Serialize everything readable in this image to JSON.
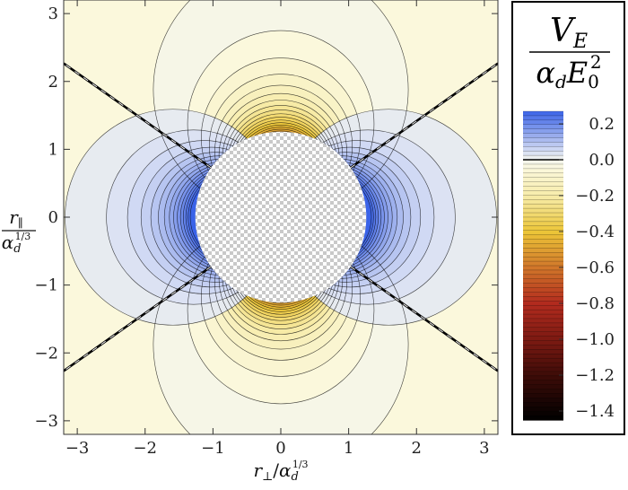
{
  "chart_data": {
    "type": "heatmap",
    "title": "",
    "xlabel": {
      "main": "r",
      "sub": "⊥",
      "denom": "α",
      "denom_sub": "d",
      "denom_sup": "1/3"
    },
    "ylabel": {
      "main": "r",
      "sub": "∥",
      "denom": "α",
      "denom_sub": "d",
      "denom_sup": "1/3"
    },
    "xlim": [
      -3.2,
      3.2
    ],
    "ylim": [
      -3.2,
      3.2
    ],
    "x_ticks": [
      -3,
      -2,
      -1,
      0,
      1,
      2,
      3
    ],
    "y_ticks": [
      -3,
      -2,
      -1,
      0,
      1,
      2,
      3
    ],
    "x_tick_labels": [
      "−3",
      "−2",
      "−1",
      "0",
      "1",
      "2",
      "3"
    ],
    "y_tick_labels": [
      "−3",
      "−2",
      "−1",
      "0",
      "1",
      "2",
      "3"
    ],
    "excluded_disk_radius": 1.26,
    "field_quantity": "V_E / (α_d E_0^2)",
    "zero_contour_angle_deg": 35.3,
    "colorbar": {
      "title_numerator": {
        "main": "V",
        "sub": "E"
      },
      "title_denominator": {
        "main": "α",
        "sub": "d",
        "main2": "E",
        "sub2": "0",
        "sup2": "2"
      },
      "range": [
        -1.45,
        0.27
      ],
      "ticks": [
        0.2,
        0.0,
        -0.2,
        -0.4,
        -0.6,
        -0.8,
        -1.0,
        -1.2,
        -1.4
      ],
      "tick_labels": [
        "0.2",
        "0.0",
        "−0.2",
        "−0.4",
        "−0.6",
        "−0.8",
        "−1.0",
        "−1.2",
        "−1.4"
      ],
      "color_stops": [
        {
          "value": 0.27,
          "color": "#3a63e8"
        },
        {
          "value": 0.15,
          "color": "#8ea4ec"
        },
        {
          "value": 0.05,
          "color": "#d4dcf4"
        },
        {
          "value": 0.0,
          "color": "#f3f5ee"
        },
        {
          "value": -0.05,
          "color": "#fbf8dc"
        },
        {
          "value": -0.2,
          "color": "#f7ecaa"
        },
        {
          "value": -0.4,
          "color": "#ecc638"
        },
        {
          "value": -0.6,
          "color": "#d1772a"
        },
        {
          "value": -0.8,
          "color": "#b22b1e"
        },
        {
          "value": -1.0,
          "color": "#7d1a12"
        },
        {
          "value": -1.2,
          "color": "#3e0c08"
        },
        {
          "value": -1.45,
          "color": "#000000"
        }
      ]
    }
  }
}
